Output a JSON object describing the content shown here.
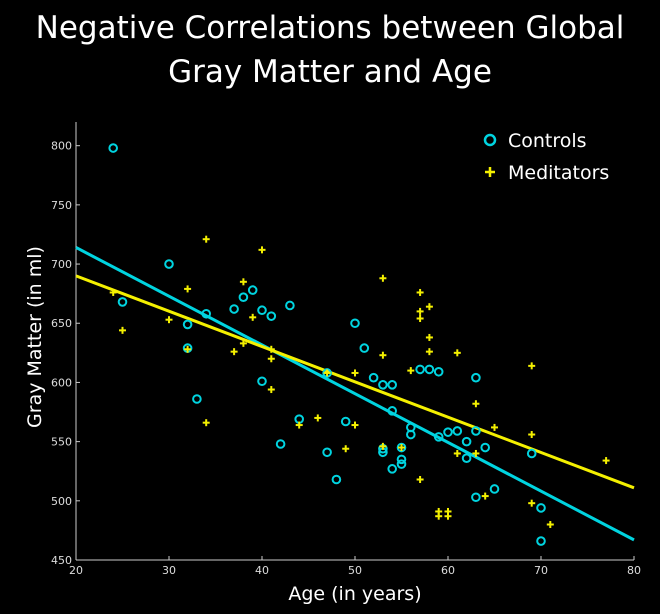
{
  "chart_data": {
    "type": "scatter",
    "title": "Negative Correlations between Global Gray Matter and Age",
    "title_lines": [
      "Negative Correlations between Global",
      "Gray Matter and Age"
    ],
    "xlabel": "Age (in years)",
    "ylabel": "Gray Matter (in ml)",
    "xlim": [
      20,
      80
    ],
    "ylim": [
      450,
      820
    ],
    "xticks": [
      20,
      30,
      40,
      50,
      60,
      70,
      80
    ],
    "yticks": [
      450,
      500,
      550,
      600,
      650,
      700,
      750,
      800
    ],
    "legend_position": "top-right",
    "series": [
      {
        "name": "Controls",
        "marker": "circle",
        "color": "#00d4e0",
        "points": [
          [
            24,
            798
          ],
          [
            25,
            668
          ],
          [
            30,
            700
          ],
          [
            32,
            649
          ],
          [
            32,
            629
          ],
          [
            33,
            586
          ],
          [
            34,
            658
          ],
          [
            37,
            662
          ],
          [
            38,
            672
          ],
          [
            39,
            678
          ],
          [
            40,
            601
          ],
          [
            40,
            661
          ],
          [
            41,
            656
          ],
          [
            42,
            548
          ],
          [
            43,
            665
          ],
          [
            44,
            569
          ],
          [
            47,
            608
          ],
          [
            47,
            541
          ],
          [
            48,
            518
          ],
          [
            49,
            567
          ],
          [
            50,
            650
          ],
          [
            51,
            629
          ],
          [
            52,
            604
          ],
          [
            53,
            598
          ],
          [
            53,
            541
          ],
          [
            53,
            544
          ],
          [
            54,
            598
          ],
          [
            54,
            576
          ],
          [
            54,
            527
          ],
          [
            55,
            531
          ],
          [
            55,
            535
          ],
          [
            56,
            562
          ],
          [
            56,
            556
          ],
          [
            57,
            611
          ],
          [
            58,
            611
          ],
          [
            59,
            609
          ],
          [
            59,
            554
          ],
          [
            60,
            558
          ],
          [
            61,
            559
          ],
          [
            62,
            536
          ],
          [
            62,
            550
          ],
          [
            63,
            604
          ],
          [
            63,
            559
          ],
          [
            63,
            503
          ],
          [
            64,
            545
          ],
          [
            65,
            510
          ],
          [
            69,
            540
          ],
          [
            70,
            494
          ],
          [
            70,
            466
          ],
          [
            55,
            545
          ]
        ]
      },
      {
        "name": "Meditators",
        "marker": "plus",
        "color": "#f4f000",
        "points": [
          [
            24,
            676
          ],
          [
            25,
            644
          ],
          [
            30,
            653
          ],
          [
            32,
            679
          ],
          [
            32,
            628
          ],
          [
            34,
            721
          ],
          [
            34,
            566
          ],
          [
            37,
            626
          ],
          [
            38,
            685
          ],
          [
            38,
            633
          ],
          [
            39,
            655
          ],
          [
            40,
            712
          ],
          [
            41,
            628
          ],
          [
            41,
            620
          ],
          [
            41,
            594
          ],
          [
            44,
            564
          ],
          [
            46,
            570
          ],
          [
            47,
            608
          ],
          [
            49,
            544
          ],
          [
            50,
            608
          ],
          [
            50,
            564
          ],
          [
            53,
            688
          ],
          [
            53,
            623
          ],
          [
            53,
            546
          ],
          [
            55,
            545
          ],
          [
            56,
            610
          ],
          [
            57,
            676
          ],
          [
            57,
            660
          ],
          [
            57,
            654
          ],
          [
            57,
            518
          ],
          [
            58,
            664
          ],
          [
            58,
            638
          ],
          [
            58,
            626
          ],
          [
            59,
            491
          ],
          [
            59,
            487
          ],
          [
            60,
            491
          ],
          [
            60,
            487
          ],
          [
            61,
            625
          ],
          [
            61,
            540
          ],
          [
            63,
            582
          ],
          [
            63,
            540
          ],
          [
            64,
            504
          ],
          [
            65,
            562
          ],
          [
            69,
            614
          ],
          [
            69,
            556
          ],
          [
            69,
            498
          ],
          [
            71,
            480
          ],
          [
            77,
            534
          ]
        ]
      }
    ],
    "fit_lines": [
      {
        "name": "Controls fit",
        "color": "#00d4e0",
        "x": [
          20,
          80
        ],
        "y": [
          714,
          467
        ]
      },
      {
        "name": "Meditators fit",
        "color": "#f4f000",
        "x": [
          20,
          80
        ],
        "y": [
          690,
          511
        ]
      }
    ]
  }
}
